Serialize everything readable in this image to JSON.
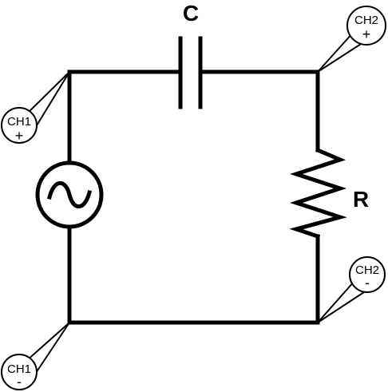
{
  "components": {
    "capacitor_label": "C",
    "resistor_label": "R"
  },
  "probes": {
    "ch1_pos": {
      "name": "CH1",
      "sign": "+"
    },
    "ch1_neg": {
      "name": "CH1",
      "sign": "-"
    },
    "ch2_pos": {
      "name": "CH2",
      "sign": "+"
    },
    "ch2_neg": {
      "name": "CH2",
      "sign": "-"
    }
  }
}
